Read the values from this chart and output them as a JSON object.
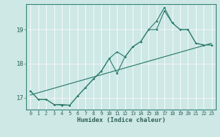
{
  "title": "",
  "xlabel": "Humidex (Indice chaleur)",
  "ylabel": "",
  "bg_color": "#cde8e5",
  "grid_color": "#b8d8d5",
  "line_color": "#2e7d6e",
  "xlim": [
    -0.5,
    23.5
  ],
  "ylim": [
    16.65,
    19.75
  ],
  "yticks": [
    17,
    18,
    19
  ],
  "xticks": [
    0,
    1,
    2,
    3,
    4,
    5,
    6,
    7,
    8,
    9,
    10,
    11,
    12,
    13,
    14,
    15,
    16,
    17,
    18,
    19,
    20,
    21,
    22,
    23
  ],
  "line1_x": [
    0,
    1,
    2,
    3,
    4,
    5,
    6,
    7,
    8,
    9,
    10,
    11,
    12,
    13,
    14,
    15,
    16,
    17,
    18,
    19,
    20,
    21,
    22,
    23
  ],
  "line1_y": [
    17.2,
    16.95,
    16.95,
    16.8,
    16.8,
    16.78,
    17.05,
    17.3,
    17.55,
    17.78,
    18.15,
    18.35,
    18.2,
    18.5,
    18.65,
    19.0,
    19.0,
    19.55,
    19.2,
    19.0,
    19.0,
    18.6,
    18.55,
    18.55
  ],
  "line2_x": [
    0,
    1,
    2,
    3,
    4,
    5,
    6,
    7,
    8,
    9,
    10,
    11,
    12,
    13,
    14,
    15,
    16,
    17,
    18,
    19,
    20,
    21,
    22,
    23
  ],
  "line2_y": [
    17.2,
    16.95,
    16.95,
    16.8,
    16.78,
    16.78,
    17.05,
    17.3,
    17.55,
    17.78,
    18.15,
    17.72,
    18.2,
    18.5,
    18.65,
    19.0,
    19.25,
    19.65,
    19.2,
    19.0,
    19.0,
    18.6,
    18.55,
    18.55
  ],
  "trend_x": [
    0,
    23
  ],
  "trend_y": [
    17.08,
    18.6
  ]
}
